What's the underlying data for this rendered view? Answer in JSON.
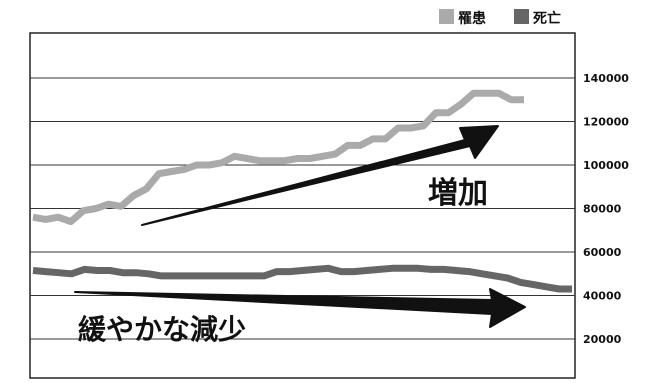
{
  "chart_data": {
    "type": "line",
    "ylim": [
      0,
      160000
    ],
    "y_ticks": [
      "20000",
      "40000",
      "60000",
      "80000",
      "100000",
      "120000",
      "140000"
    ],
    "y_tick_values": [
      20000,
      40000,
      60000,
      80000,
      100000,
      120000,
      140000
    ],
    "grid": true,
    "legend_position": "top-right",
    "series": [
      {
        "name": "罹患",
        "color": "#aaaaaa",
        "values": [
          76000,
          75000,
          76000,
          74000,
          79000,
          80000,
          82000,
          81000,
          86000,
          89000,
          96000,
          97000,
          98000,
          100000,
          100000,
          101000,
          104000,
          103000,
          102000,
          102000,
          102000,
          103000,
          103000,
          104000,
          105000,
          109000,
          109000,
          112000,
          112000,
          117000,
          117000,
          118000,
          124000,
          124000,
          128000,
          133000,
          133000,
          133000,
          130000,
          130000
        ]
      },
      {
        "name": "死亡",
        "color": "#666666",
        "values": [
          51500,
          51000,
          50500,
          50000,
          52000,
          51500,
          51500,
          50500,
          50500,
          50000,
          49000,
          49000,
          49000,
          49000,
          49000,
          49000,
          49000,
          49000,
          49000,
          51000,
          51000,
          51500,
          52000,
          52500,
          51000,
          51000,
          51500,
          52000,
          52500,
          52500,
          52500,
          52000,
          52000,
          51500,
          51000,
          50000,
          49000,
          48000,
          46000,
          45000,
          44000,
          43000,
          43000
        ]
      }
    ],
    "annotations": {
      "increase": "増加",
      "decrease": "緩やかな減少"
    }
  }
}
